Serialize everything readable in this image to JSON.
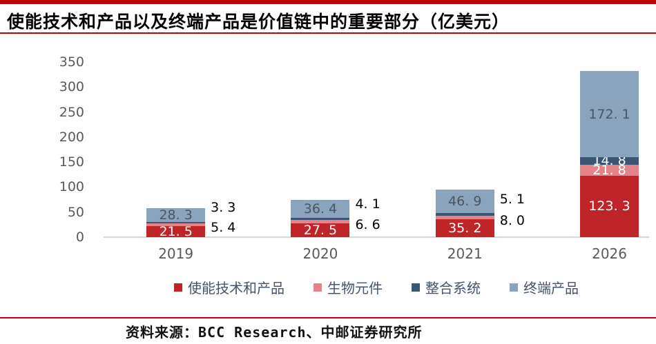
{
  "title": "使能技术和产品以及终端产品是价值链中的重要部分（亿美元）",
  "source_note": "资料来源：BCC Research、中邮证券研究所",
  "accent": {
    "rule_color": "#c00000",
    "axis_text_color": "#595959",
    "legend_text_color": "#44546a",
    "inside_light_label_color": "#4a5560",
    "baseline_color": "#d6d6d6"
  },
  "chart_data": {
    "type": "bar",
    "stacked": true,
    "title": "使能技术和产品以及终端产品是价值链中的重要部分（亿美元）",
    "unit": "亿美元",
    "categories": [
      "2019",
      "2020",
      "2021",
      "2026"
    ],
    "series": [
      {
        "name": "使能技术和产品",
        "color": "#bf2428",
        "values": [
          21.5,
          27.5,
          35.2,
          123.3
        ]
      },
      {
        "name": "生物元件",
        "color": "#e48488",
        "values": [
          5.4,
          6.6,
          8.0,
          21.8
        ]
      },
      {
        "name": "整合系统",
        "color": "#3a5674",
        "values": [
          3.3,
          4.1,
          5.1,
          14.8
        ]
      },
      {
        "name": "终端产品",
        "color": "#8ba4be",
        "values": [
          28.3,
          36.4,
          46.9,
          172.1
        ]
      }
    ],
    "totals": [
      58.5,
      74.6,
      95.2,
      332.0
    ],
    "ylim": [
      0,
      350
    ],
    "yticks": [
      0,
      50,
      100,
      150,
      200,
      250,
      300,
      350
    ],
    "grid": false,
    "legend_position": "bottom"
  }
}
